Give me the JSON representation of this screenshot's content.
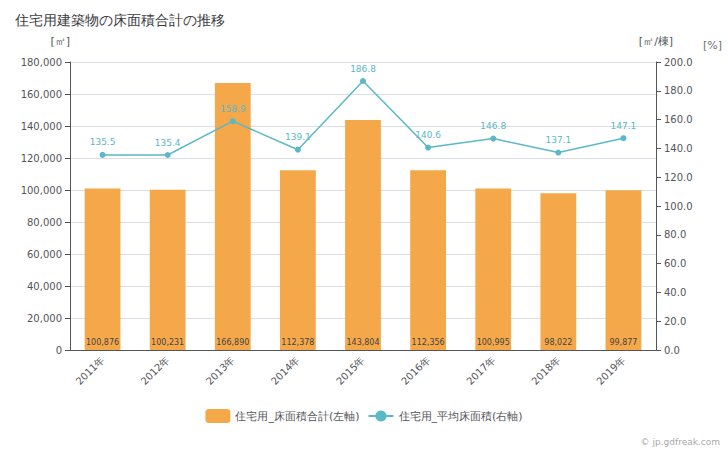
{
  "chart_data": {
    "type": "bar",
    "title": "住宅用建築物の床面積合計の推移",
    "categories": [
      "2011年",
      "2012年",
      "2013年",
      "2014年",
      "2015年",
      "2016年",
      "2017年",
      "2018年",
      "2019年"
    ],
    "series": [
      {
        "name": "住宅用_床面積合計(左軸)",
        "type": "bar",
        "color": "#F5A84A",
        "values": [
          100876,
          100231,
          166890,
          112378,
          143804,
          112356,
          100995,
          98022,
          99877
        ],
        "value_labels": [
          "100,876",
          "100,231",
          "166,890",
          "112,378",
          "143,804",
          "112,356",
          "100,995",
          "98,022",
          "99,877"
        ]
      },
      {
        "name": "住宅用_平均床面積(右軸)",
        "type": "line",
        "axis": "y2",
        "color": "#5BB8C8",
        "marker": "circle",
        "values": [
          135.5,
          135.4,
          158.9,
          139.1,
          186.8,
          140.6,
          146.8,
          137.1,
          147.1
        ]
      }
    ],
    "ylabel": "[㎡]",
    "y2label": "[㎡/棟]",
    "annotations": [
      "[%]",
      "© jp.gdfreak.com"
    ],
    "ylim": [
      0,
      180000
    ],
    "yticks": [
      0,
      {
        "value": 20000,
        "label": "20,000"
      },
      {
        "value": 40000,
        "label": "40,000"
      },
      {
        "value": 60000,
        "label": "60,000"
      },
      {
        "value": 80000,
        "label": "80,000"
      },
      {
        "value": 100000,
        "label": "100,000"
      },
      {
        "value": 120000,
        "label": "120,000"
      },
      {
        "value": 140000,
        "label": "140,000"
      },
      {
        "value": 160000,
        "label": "160,000"
      },
      {
        "value": 180000,
        "label": "180,000"
      }
    ],
    "y2lim": [
      0,
      200.0
    ],
    "y2ticks": [
      {
        "value": 0,
        "label": "0.0"
      },
      {
        "value": 20,
        "label": "20.0"
      },
      {
        "value": 40,
        "label": "40.0"
      },
      {
        "value": 60,
        "label": "60.0"
      },
      {
        "value": 80,
        "label": "80.0"
      },
      {
        "value": 100,
        "label": "100.0"
      },
      {
        "value": 120,
        "label": "120.0"
      },
      {
        "value": 140,
        "label": "140.0"
      },
      {
        "value": 160,
        "label": "160.0"
      },
      {
        "value": 180,
        "label": "180.0"
      },
      {
        "value": 200,
        "label": "200.0"
      }
    ],
    "grid": true,
    "legend": "bottom",
    "data_labels": true
  }
}
